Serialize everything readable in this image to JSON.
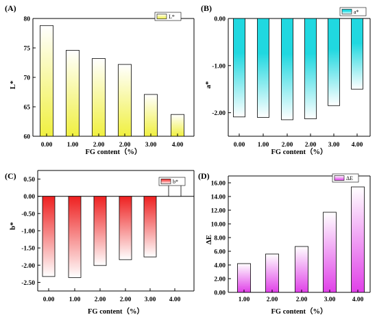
{
  "chart_data": [
    {
      "panel": "(A)",
      "type": "bar",
      "categories": [
        "0.00",
        "1.00",
        "2.00",
        "2.00",
        "3.00",
        "4.00"
      ],
      "values": [
        78.8,
        74.6,
        73.2,
        72.2,
        67.1,
        63.7
      ],
      "ylabel": "L*",
      "xlabel": "FG content（%）",
      "legend": "L*",
      "ylim": [
        60,
        80
      ],
      "yticks": [
        "60",
        "65",
        "70",
        "75",
        "80"
      ],
      "color": "#f0f040"
    },
    {
      "panel": "(B)",
      "type": "bar",
      "categories": [
        "0.00",
        "1.00",
        "2.00",
        "2.00",
        "3.00",
        "4.00"
      ],
      "values": [
        -2.09,
        -2.1,
        -2.15,
        -2.13,
        -1.85,
        -1.5
      ],
      "ylabel": "a*",
      "xlabel": "FG content（%）",
      "legend": "a*",
      "ylim": [
        -2.5,
        0
      ],
      "yticks": [
        "-2.00",
        "-1.00",
        "0.00"
      ],
      "color": "#20d8e0"
    },
    {
      "panel": "(C)",
      "type": "bar",
      "categories": [
        "0.00",
        "1.00",
        "2.00",
        "2.00",
        "3.00",
        "4.00"
      ],
      "values": [
        -2.33,
        -2.36,
        -2.01,
        -1.84,
        -1.76,
        0.47
      ],
      "ylabel": "b*",
      "xlabel": "FG content（%）",
      "legend": "b*",
      "ylim": [
        -2.75,
        0.75
      ],
      "yticks": [
        "-2.50",
        "-2.00",
        "-1.50",
        "-1.00",
        "-0.50",
        "0.00",
        "0.50"
      ],
      "color": "#ee2020"
    },
    {
      "panel": "(D)",
      "type": "bar",
      "categories": [
        "1.00",
        "2.00",
        "2.00",
        "3.00",
        "4.00"
      ],
      "values": [
        4.2,
        5.6,
        6.7,
        11.7,
        15.4
      ],
      "ylabel": "ΔE",
      "xlabel": "FG content（%）",
      "legend": "ΔE",
      "ylim": [
        0,
        17
      ],
      "yticks": [
        "0.00",
        "2.00",
        "4.00",
        "6.00",
        "8.00",
        "10.00",
        "12.00",
        "14.00",
        "16.00"
      ],
      "color": "#e040e8"
    }
  ]
}
